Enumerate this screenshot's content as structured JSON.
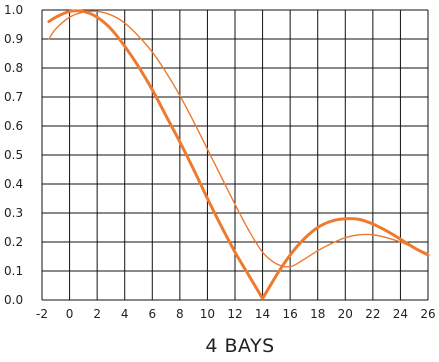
{
  "chart_data": {
    "type": "line",
    "title": "4 BAYS",
    "xlabel": "",
    "ylabel": "",
    "xlim": [
      -2,
      26
    ],
    "ylim": [
      0,
      1
    ],
    "grid": true,
    "x_ticks": [
      -2,
      0,
      2,
      4,
      6,
      8,
      10,
      12,
      14,
      16,
      18,
      20,
      22,
      24,
      26
    ],
    "y_ticks": [
      "0.0",
      "0.1",
      "0.2",
      "0.3",
      "0.4",
      "0.5",
      "0.6",
      "0.7",
      "0.8",
      "0.9",
      "1.0"
    ],
    "series": [
      {
        "style": "thick",
        "color": "#ee7a30",
        "x": [
          -1.5,
          -1,
          0,
          1,
          2,
          3,
          4,
          5,
          6,
          7,
          8,
          9,
          10,
          11,
          12,
          13,
          14,
          15,
          16,
          17,
          18,
          19,
          20,
          21,
          22,
          23,
          24,
          25,
          26
        ],
        "y": [
          0.96,
          0.975,
          0.995,
          0.995,
          0.975,
          0.935,
          0.875,
          0.805,
          0.725,
          0.635,
          0.545,
          0.45,
          0.35,
          0.255,
          0.165,
          0.085,
          0.005,
          0.085,
          0.155,
          0.21,
          0.25,
          0.272,
          0.28,
          0.278,
          0.262,
          0.238,
          0.21,
          0.18,
          0.155
        ]
      },
      {
        "style": "thin",
        "color": "#ee7a30",
        "x": [
          -1.5,
          -1,
          0,
          1,
          2,
          3,
          4,
          5,
          6,
          7,
          8,
          9,
          10,
          11,
          12,
          13,
          14,
          15,
          16,
          17,
          18,
          19,
          20,
          21,
          22,
          23,
          24,
          25,
          26
        ],
        "y": [
          0.9,
          0.935,
          0.975,
          0.993,
          0.995,
          0.983,
          0.955,
          0.91,
          0.855,
          0.785,
          0.705,
          0.615,
          0.52,
          0.425,
          0.33,
          0.24,
          0.165,
          0.125,
          0.115,
          0.14,
          0.17,
          0.195,
          0.215,
          0.225,
          0.225,
          0.215,
          0.2,
          0.18,
          0.16
        ]
      }
    ]
  }
}
